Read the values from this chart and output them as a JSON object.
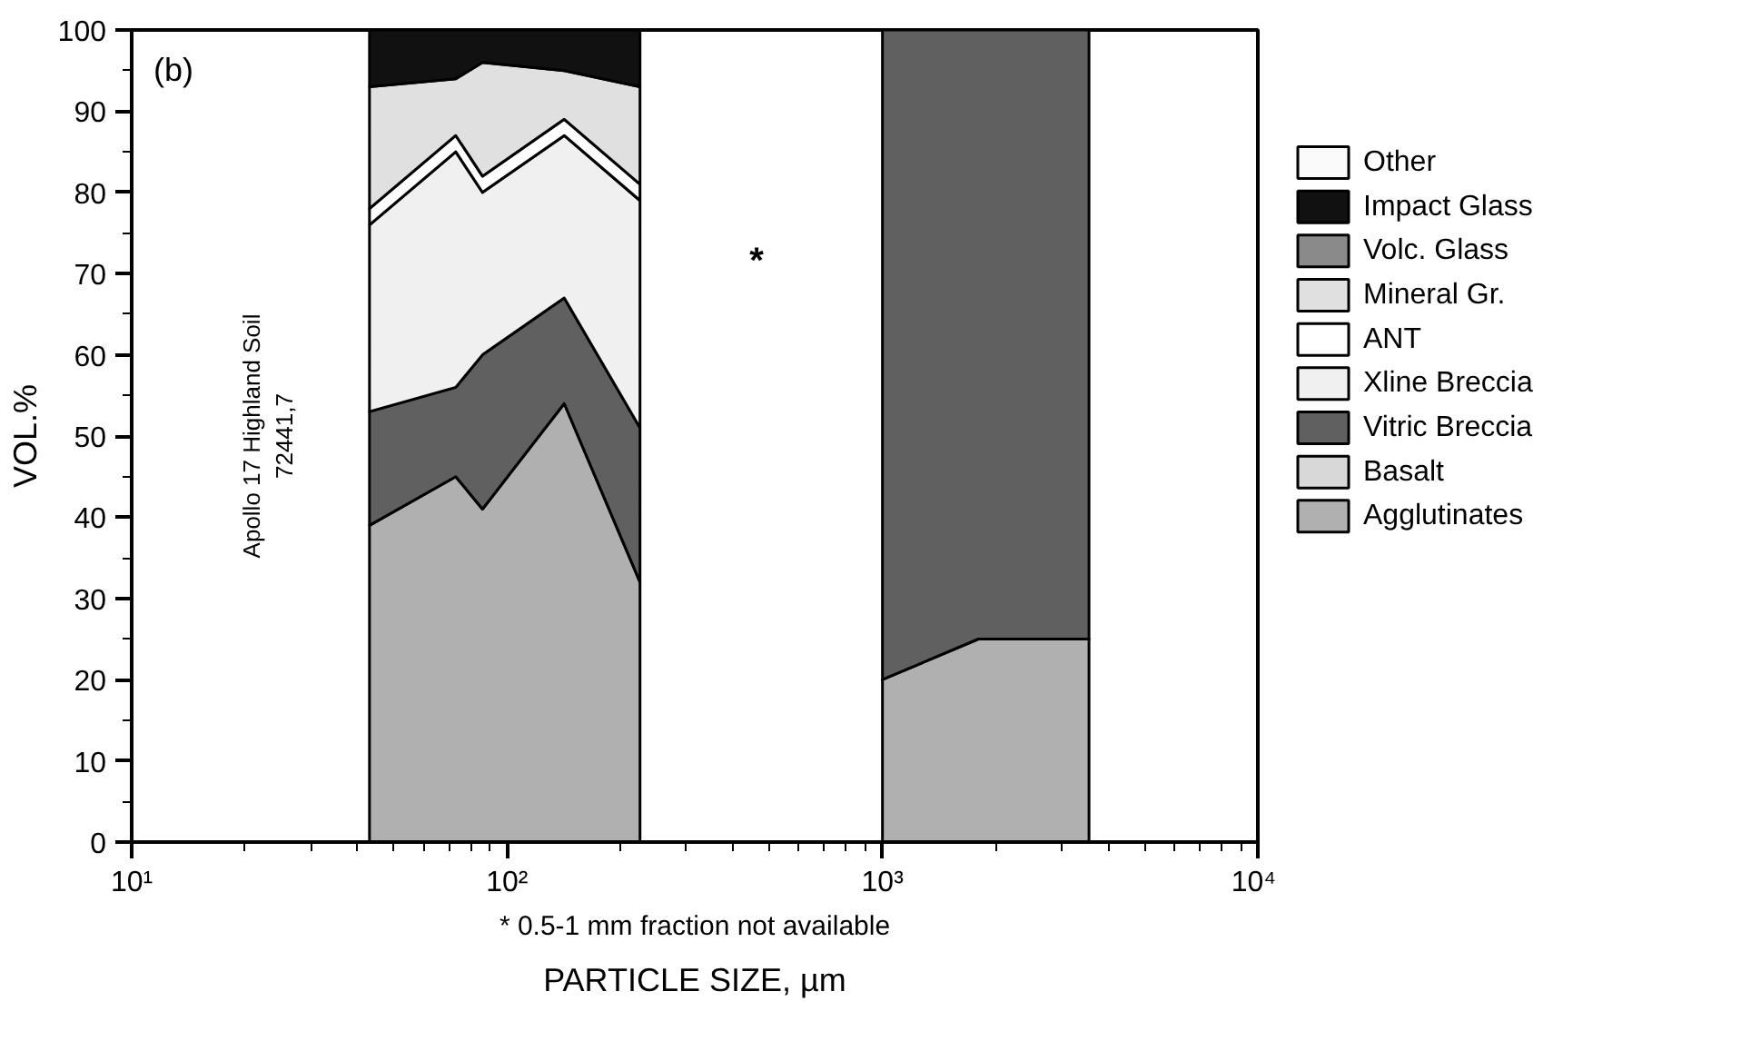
{
  "chart_data": {
    "type": "area",
    "stacked": true,
    "log": "x",
    "grid": false,
    "legend": "right",
    "xlabel": "PARTICLE SIZE, µm",
    "ylabel": "VOL.%",
    "x": [
      43,
      73,
      86,
      142,
      226,
      460,
      1000,
      1800,
      3550
    ],
    "xlim": [
      10,
      10000
    ],
    "xticks": [
      {
        "value": 10,
        "label": "10¹"
      },
      {
        "value": 100,
        "label": "10²"
      },
      {
        "value": 1000,
        "label": "10³"
      },
      {
        "value": 10000,
        "label": "10⁴"
      }
    ],
    "ylim": [
      0,
      100
    ],
    "yticks": [
      0,
      10,
      20,
      30,
      40,
      50,
      60,
      70,
      80,
      90,
      100
    ],
    "series": [
      {
        "name": "Agglutinates",
        "color": "#b0b0b0",
        "values": [
          39,
          45,
          41,
          54,
          32,
          null,
          20,
          25,
          25
        ]
      },
      {
        "name": "Basalt",
        "color": "#d8d8d8",
        "values": [
          null,
          null,
          null,
          null,
          null,
          null,
          null,
          null,
          null
        ]
      },
      {
        "name": "Vitric Breccia",
        "color": "#606060",
        "values": [
          14,
          11,
          19,
          13,
          19,
          null,
          80,
          75,
          75
        ]
      },
      {
        "name": "Xline Breccia",
        "color": "#f0f0f0",
        "values": [
          23,
          29,
          20,
          20,
          28,
          null,
          null,
          null,
          null
        ]
      },
      {
        "name": "ANT",
        "color": "#ffffff",
        "values": [
          2,
          2,
          2,
          2,
          2,
          null,
          null,
          null,
          null
        ]
      },
      {
        "name": "Mineral Gr.",
        "color": "#e0e0e0",
        "values": [
          15,
          7,
          14,
          6,
          12,
          null,
          null,
          null,
          null
        ]
      },
      {
        "name": "Volc. Glass",
        "color": "#8a8a8a",
        "values": [
          null,
          null,
          null,
          null,
          null,
          null,
          null,
          null,
          null
        ]
      },
      {
        "name": "Impact Glass",
        "color": "#111111",
        "values": [
          7,
          6,
          4,
          5,
          7,
          null,
          null,
          null,
          null
        ]
      },
      {
        "name": "Other",
        "color": "#fafafa",
        "values": [
          null,
          null,
          null,
          null,
          null,
          null,
          null,
          null,
          null
        ]
      }
    ],
    "annotations": [
      "(b)",
      "Apollo 17 Highland Soil\n72441,7",
      "*",
      "* 0.5-1 mm fraction not available"
    ]
  }
}
